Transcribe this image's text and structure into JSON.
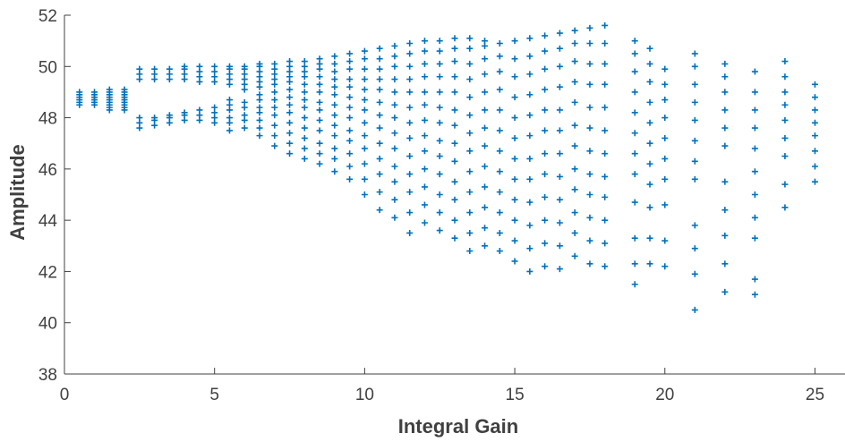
{
  "chart_data": {
    "type": "scatter",
    "marker": "plus",
    "color": "#0072BD",
    "title": "",
    "xlabel": "Integral Gain",
    "ylabel": "Amplitude",
    "xlim": [
      0,
      26
    ],
    "ylim": [
      38,
      52
    ],
    "xticks": [
      0,
      5,
      10,
      15,
      20,
      25
    ],
    "yticks": [
      38,
      40,
      42,
      44,
      46,
      48,
      50,
      52
    ],
    "grid": false,
    "series": [
      {
        "values_by_x": [
          {
            "x": 0.5,
            "y": [
              48.5,
              48.6,
              48.7,
              48.8,
              48.9,
              49.0
            ]
          },
          {
            "x": 1.0,
            "y": [
              48.5,
              48.6,
              48.7,
              48.8,
              48.9,
              49.0
            ]
          },
          {
            "x": 1.5,
            "y": [
              48.3,
              48.4,
              48.5,
              48.6,
              48.7,
              48.8,
              48.9,
              49.0,
              49.1
            ]
          },
          {
            "x": 2.0,
            "y": [
              48.3,
              48.4,
              48.5,
              48.6,
              48.7,
              48.8,
              48.9,
              49.0,
              49.1
            ]
          },
          {
            "x": 2.5,
            "y": [
              47.6,
              47.8,
              48.0,
              49.5,
              49.7,
              49.9
            ]
          },
          {
            "x": 3.0,
            "y": [
              47.7,
              47.9,
              48.0,
              49.5,
              49.7,
              49.9
            ]
          },
          {
            "x": 3.5,
            "y": [
              47.8,
              48.0,
              48.1,
              49.5,
              49.7,
              49.9
            ]
          },
          {
            "x": 4.0,
            "y": [
              47.9,
              48.1,
              48.2,
              49.5,
              49.7,
              49.9,
              50.0
            ]
          },
          {
            "x": 4.5,
            "y": [
              47.9,
              48.1,
              48.3,
              49.4,
              49.6,
              49.8,
              50.0
            ]
          },
          {
            "x": 5.0,
            "y": [
              47.8,
              48.0,
              48.2,
              48.4,
              49.4,
              49.6,
              49.8,
              50.0
            ]
          },
          {
            "x": 5.5,
            "y": [
              47.5,
              47.8,
              48.0,
              48.3,
              48.5,
              48.7,
              49.3,
              49.5,
              49.7,
              49.9,
              50.0
            ]
          },
          {
            "x": 6.0,
            "y": [
              47.6,
              47.9,
              48.1,
              48.4,
              48.6,
              49.1,
              49.3,
              49.5,
              49.7,
              49.9,
              50.0
            ]
          },
          {
            "x": 6.5,
            "y": [
              47.3,
              47.6,
              47.9,
              48.2,
              48.4,
              48.7,
              48.9,
              49.2,
              49.4,
              49.6,
              49.8,
              50.0,
              50.1
            ]
          },
          {
            "x": 7.0,
            "y": [
              46.9,
              47.3,
              47.7,
              48.1,
              48.4,
              48.7,
              49.0,
              49.3,
              49.5,
              49.7,
              49.9,
              50.1
            ]
          },
          {
            "x": 7.5,
            "y": [
              46.6,
              47.0,
              47.4,
              47.8,
              48.2,
              48.5,
              48.8,
              49.1,
              49.4,
              49.6,
              49.8,
              50.0,
              50.2
            ]
          },
          {
            "x": 8.0,
            "y": [
              46.4,
              46.8,
              47.2,
              47.6,
              48.0,
              48.4,
              48.7,
              49.0,
              49.3,
              49.6,
              49.8,
              50.0,
              50.2
            ]
          },
          {
            "x": 8.5,
            "y": [
              46.2,
              46.6,
              47.0,
              47.5,
              47.9,
              48.3,
              48.6,
              49.0,
              49.3,
              49.6,
              49.9,
              50.1,
              50.3
            ]
          },
          {
            "x": 9.0,
            "y": [
              45.9,
              46.4,
              46.8,
              47.3,
              47.7,
              48.1,
              48.5,
              48.9,
              49.2,
              49.5,
              49.8,
              50.1,
              50.4
            ]
          },
          {
            "x": 9.5,
            "y": [
              45.6,
              46.1,
              46.6,
              47.1,
              47.5,
              48.0,
              48.4,
              48.8,
              49.2,
              49.5,
              49.9,
              50.2,
              50.5
            ]
          },
          {
            "x": 10.0,
            "y": [
              45.0,
              45.6,
              46.2,
              46.8,
              47.3,
              47.8,
              48.3,
              48.7,
              49.1,
              49.5,
              49.9,
              50.3,
              50.6
            ]
          },
          {
            "x": 10.5,
            "y": [
              44.4,
              45.1,
              45.8,
              46.4,
              47.0,
              47.6,
              48.1,
              48.6,
              49.1,
              49.5,
              49.9,
              50.3,
              50.7
            ]
          },
          {
            "x": 11.0,
            "y": [
              44.1,
              44.8,
              45.5,
              46.1,
              46.8,
              47.4,
              48.0,
              48.5,
              49.0,
              49.5,
              50.0,
              50.4,
              50.8
            ]
          },
          {
            "x": 11.5,
            "y": [
              43.5,
              44.3,
              45.1,
              45.8,
              46.5,
              47.2,
              47.8,
              48.4,
              49.0,
              49.5,
              50.0,
              50.5,
              50.9
            ]
          },
          {
            "x": 12.0,
            "y": [
              43.9,
              44.6,
              45.3,
              46.0,
              46.7,
              47.3,
              47.9,
              48.5,
              49.0,
              49.6,
              50.1,
              50.6,
              51.0
            ]
          },
          {
            "x": 12.5,
            "y": [
              43.6,
              44.3,
              45.0,
              45.8,
              46.5,
              47.1,
              47.8,
              48.4,
              49.0,
              49.6,
              50.1,
              50.6,
              51.0
            ]
          },
          {
            "x": 13.0,
            "y": [
              43.3,
              44.0,
              44.8,
              45.5,
              46.3,
              47.0,
              47.7,
              48.3,
              49.0,
              49.6,
              50.2,
              50.7,
              51.1
            ]
          },
          {
            "x": 13.5,
            "y": [
              42.8,
              43.5,
              44.3,
              45.1,
              45.9,
              46.7,
              47.4,
              48.1,
              48.8,
              49.5,
              50.1,
              50.7,
              51.1
            ]
          },
          {
            "x": 14.0,
            "y": [
              43.0,
              43.7,
              44.5,
              45.3,
              46.1,
              46.9,
              47.6,
              48.3,
              49.0,
              49.7,
              50.3,
              50.8,
              51.0
            ]
          },
          {
            "x": 14.5,
            "y": [
              42.8,
              43.5,
              44.3,
              45.1,
              45.9,
              46.7,
              47.5,
              48.3,
              49.1,
              49.8,
              50.4,
              50.9
            ]
          },
          {
            "x": 15.0,
            "y": [
              42.4,
              43.2,
              44.0,
              44.8,
              45.6,
              46.4,
              47.2,
              48.0,
              48.8,
              49.6,
              50.3,
              51.0
            ]
          },
          {
            "x": 15.5,
            "y": [
              42.0,
              42.9,
              43.8,
              44.7,
              45.6,
              46.4,
              47.3,
              48.1,
              48.9,
              49.7,
              50.4,
              51.1
            ]
          },
          {
            "x": 16.0,
            "y": [
              42.2,
              43.1,
              44.0,
              44.9,
              45.8,
              46.6,
              47.5,
              48.3,
              49.1,
              49.9,
              50.6,
              51.2
            ]
          },
          {
            "x": 16.5,
            "y": [
              42.1,
              43.0,
              43.9,
              44.8,
              45.7,
              46.6,
              47.5,
              48.3,
              49.2,
              50.0,
              50.7,
              51.3
            ]
          },
          {
            "x": 17.0,
            "y": [
              42.6,
              43.5,
              44.3,
              45.2,
              46.0,
              46.9,
              47.7,
              48.6,
              49.4,
              50.2,
              50.9,
              51.4
            ]
          },
          {
            "x": 17.5,
            "y": [
              42.3,
              43.2,
              44.1,
              45.0,
              45.8,
              46.7,
              47.6,
              48.4,
              49.3,
              50.1,
              50.9,
              51.5
            ]
          },
          {
            "x": 18.0,
            "y": [
              42.2,
              43.1,
              44.0,
              44.9,
              45.7,
              46.6,
              47.5,
              48.4,
              49.3,
              50.1,
              50.9,
              51.6
            ]
          },
          {
            "x": 19.0,
            "y": [
              41.5,
              42.3,
              43.3,
              44.7,
              45.8,
              46.6,
              47.4,
              48.2,
              49.0,
              49.8,
              50.5,
              51.0
            ]
          },
          {
            "x": 19.5,
            "y": [
              42.3,
              43.3,
              44.5,
              45.4,
              46.2,
              47.0,
              47.8,
              48.6,
              49.4,
              50.1,
              50.7
            ]
          },
          {
            "x": 20.0,
            "y": [
              42.2,
              43.2,
              44.6,
              45.6,
              46.4,
              47.2,
              48.0,
              48.7,
              49.3,
              49.9
            ]
          },
          {
            "x": 21.0,
            "y": [
              40.5,
              41.9,
              42.9,
              43.8,
              45.6,
              46.3,
              47.1,
              47.9,
              48.6,
              49.3,
              50.0,
              50.5
            ]
          },
          {
            "x": 22.0,
            "y": [
              41.2,
              42.3,
              43.4,
              44.4,
              45.5,
              46.9,
              47.6,
              48.3,
              49.0,
              49.6,
              50.1
            ]
          },
          {
            "x": 23.0,
            "y": [
              41.1,
              41.7,
              43.3,
              44.1,
              45.0,
              45.9,
              46.8,
              47.6,
              48.3,
              49.0,
              49.8
            ]
          },
          {
            "x": 24.0,
            "y": [
              44.5,
              45.4,
              46.5,
              47.2,
              47.9,
              48.5,
              49.0,
              49.6,
              50.2
            ]
          },
          {
            "x": 25.0,
            "y": [
              45.5,
              46.1,
              46.7,
              47.3,
              47.8,
              48.3,
              48.8,
              49.3
            ]
          }
        ]
      }
    ]
  }
}
